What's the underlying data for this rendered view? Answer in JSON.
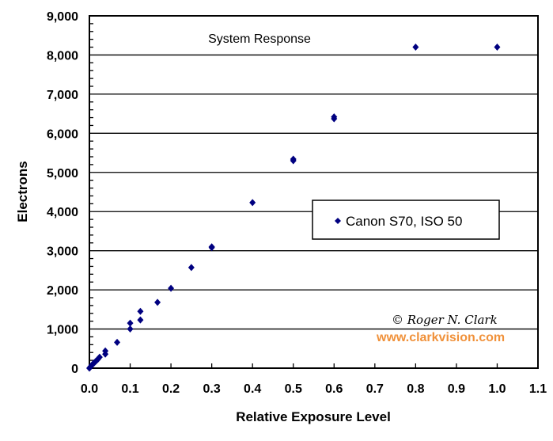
{
  "chart_data": {
    "type": "scatter",
    "title": "System Response",
    "xlabel": "Relative Exposure Level",
    "ylabel": "Electrons",
    "xlim": [
      0,
      1.1
    ],
    "ylim": [
      0,
      9000
    ],
    "x_ticks": [
      "0.0",
      "0.1",
      "0.2",
      "0.3",
      "0.4",
      "0.5",
      "0.6",
      "0.7",
      "0.8",
      "0.9",
      "1.0",
      "1.1"
    ],
    "y_ticks": [
      "0",
      "1,000",
      "2,000",
      "3,000",
      "4,000",
      "5,000",
      "6,000",
      "7,000",
      "8,000",
      "9,000"
    ],
    "grid": "horizontal",
    "legend_position": "center-right",
    "series": [
      {
        "name": "Canon S70,  ISO 50",
        "color": "#000080",
        "marker": "diamond",
        "points": [
          [
            0.0,
            0
          ],
          [
            0.002,
            25
          ],
          [
            0.004,
            50
          ],
          [
            0.006,
            75
          ],
          [
            0.008,
            100
          ],
          [
            0.01,
            120
          ],
          [
            0.012,
            140
          ],
          [
            0.015,
            170
          ],
          [
            0.018,
            200
          ],
          [
            0.021,
            230
          ],
          [
            0.025,
            280
          ],
          [
            0.039,
            360
          ],
          [
            0.039,
            440
          ],
          [
            0.068,
            660
          ],
          [
            0.1,
            1000
          ],
          [
            0.1,
            1150
          ],
          [
            0.125,
            1230
          ],
          [
            0.125,
            1450
          ],
          [
            0.167,
            1680
          ],
          [
            0.2,
            2040
          ],
          [
            0.25,
            2570
          ],
          [
            0.3,
            3080
          ],
          [
            0.3,
            3100
          ],
          [
            0.4,
            4230
          ],
          [
            0.5,
            5300
          ],
          [
            0.5,
            5340
          ],
          [
            0.6,
            6370
          ],
          [
            0.6,
            6420
          ],
          [
            0.8,
            8200
          ],
          [
            1.0,
            8200
          ]
        ]
      }
    ],
    "annotations": {
      "copyright": "© Roger N. Clark",
      "url": "www.clarkvision.com",
      "url_color": "#F0913A"
    }
  }
}
